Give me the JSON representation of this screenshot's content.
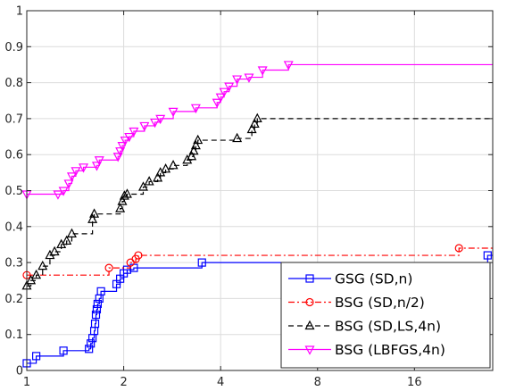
{
  "chart_data": {
    "type": "line",
    "xscale": "log2",
    "xlim": [
      1,
      28
    ],
    "ylim": [
      0,
      1
    ],
    "xticks": [
      1,
      2,
      4,
      8,
      16
    ],
    "xticklabels": [
      "1",
      "2",
      "4",
      "8",
      "16"
    ],
    "yticks": [
      0,
      0.1,
      0.2,
      0.3,
      0.4,
      0.5,
      0.6,
      0.7,
      0.8,
      0.9,
      1
    ],
    "yticklabels": [
      "0",
      "0.1",
      "0.2",
      "0.3",
      "0.4",
      "0.5",
      "0.6",
      "0.7",
      "0.8",
      "0.9",
      "1"
    ],
    "grid": true,
    "legend_position": "bottom-right",
    "series": [
      {
        "name": "GSG (SD,n)",
        "color": "#0000ff",
        "linestyle": "solid",
        "marker": "square",
        "x": [
          1,
          1.07,
          1.3,
          1.56,
          1.58,
          1.6,
          1.62,
          1.63,
          1.64,
          1.65,
          1.66,
          1.68,
          1.7,
          1.9,
          1.95,
          2.0,
          2.05,
          2.15,
          3.5,
          27
        ],
        "y": [
          0.02,
          0.04,
          0.055,
          0.06,
          0.075,
          0.09,
          0.11,
          0.13,
          0.155,
          0.17,
          0.185,
          0.2,
          0.22,
          0.24,
          0.255,
          0.27,
          0.28,
          0.285,
          0.3,
          0.32
        ]
      },
      {
        "name": "BSG (SD,n/2)",
        "color": "#ff0000",
        "linestyle": "dashdot",
        "marker": "circle",
        "x": [
          1,
          1.8,
          2.1,
          2.18,
          2.22,
          22
        ],
        "y": [
          0.265,
          0.285,
          0.3,
          0.31,
          0.32,
          0.34
        ]
      },
      {
        "name": "BSG (SD,LS,4n)",
        "color": "#000000",
        "linestyle": "dashed",
        "marker": "triangle-up",
        "x": [
          1,
          1.03,
          1.07,
          1.12,
          1.18,
          1.22,
          1.28,
          1.33,
          1.38,
          1.6,
          1.62,
          1.95,
          1.98,
          2.01,
          2.05,
          2.3,
          2.4,
          2.55,
          2.6,
          2.7,
          2.85,
          3.15,
          3.25,
          3.3,
          3.35,
          3.4,
          4.5,
          5.0,
          5.1,
          5.2
        ],
        "y": [
          0.235,
          0.25,
          0.265,
          0.29,
          0.32,
          0.33,
          0.35,
          0.36,
          0.38,
          0.42,
          0.435,
          0.45,
          0.47,
          0.485,
          0.49,
          0.51,
          0.525,
          0.535,
          0.55,
          0.56,
          0.57,
          0.585,
          0.595,
          0.61,
          0.625,
          0.64,
          0.645,
          0.67,
          0.685,
          0.7
        ]
      },
      {
        "name": "BSG (LBFGS,4n)",
        "color": "#ff00ff",
        "linestyle": "solid",
        "marker": "triangle-down",
        "x": [
          1,
          1.25,
          1.3,
          1.35,
          1.38,
          1.42,
          1.5,
          1.65,
          1.68,
          1.92,
          1.95,
          1.98,
          2.02,
          2.08,
          2.15,
          2.32,
          2.5,
          2.6,
          2.85,
          3.35,
          3.9,
          4.0,
          4.1,
          4.25,
          4.5,
          4.9,
          5.4,
          6.5
        ],
        "y": [
          0.49,
          0.49,
          0.5,
          0.52,
          0.54,
          0.555,
          0.565,
          0.57,
          0.585,
          0.595,
          0.61,
          0.625,
          0.64,
          0.65,
          0.665,
          0.68,
          0.69,
          0.7,
          0.72,
          0.73,
          0.745,
          0.76,
          0.775,
          0.79,
          0.81,
          0.815,
          0.835,
          0.85
        ]
      }
    ]
  }
}
